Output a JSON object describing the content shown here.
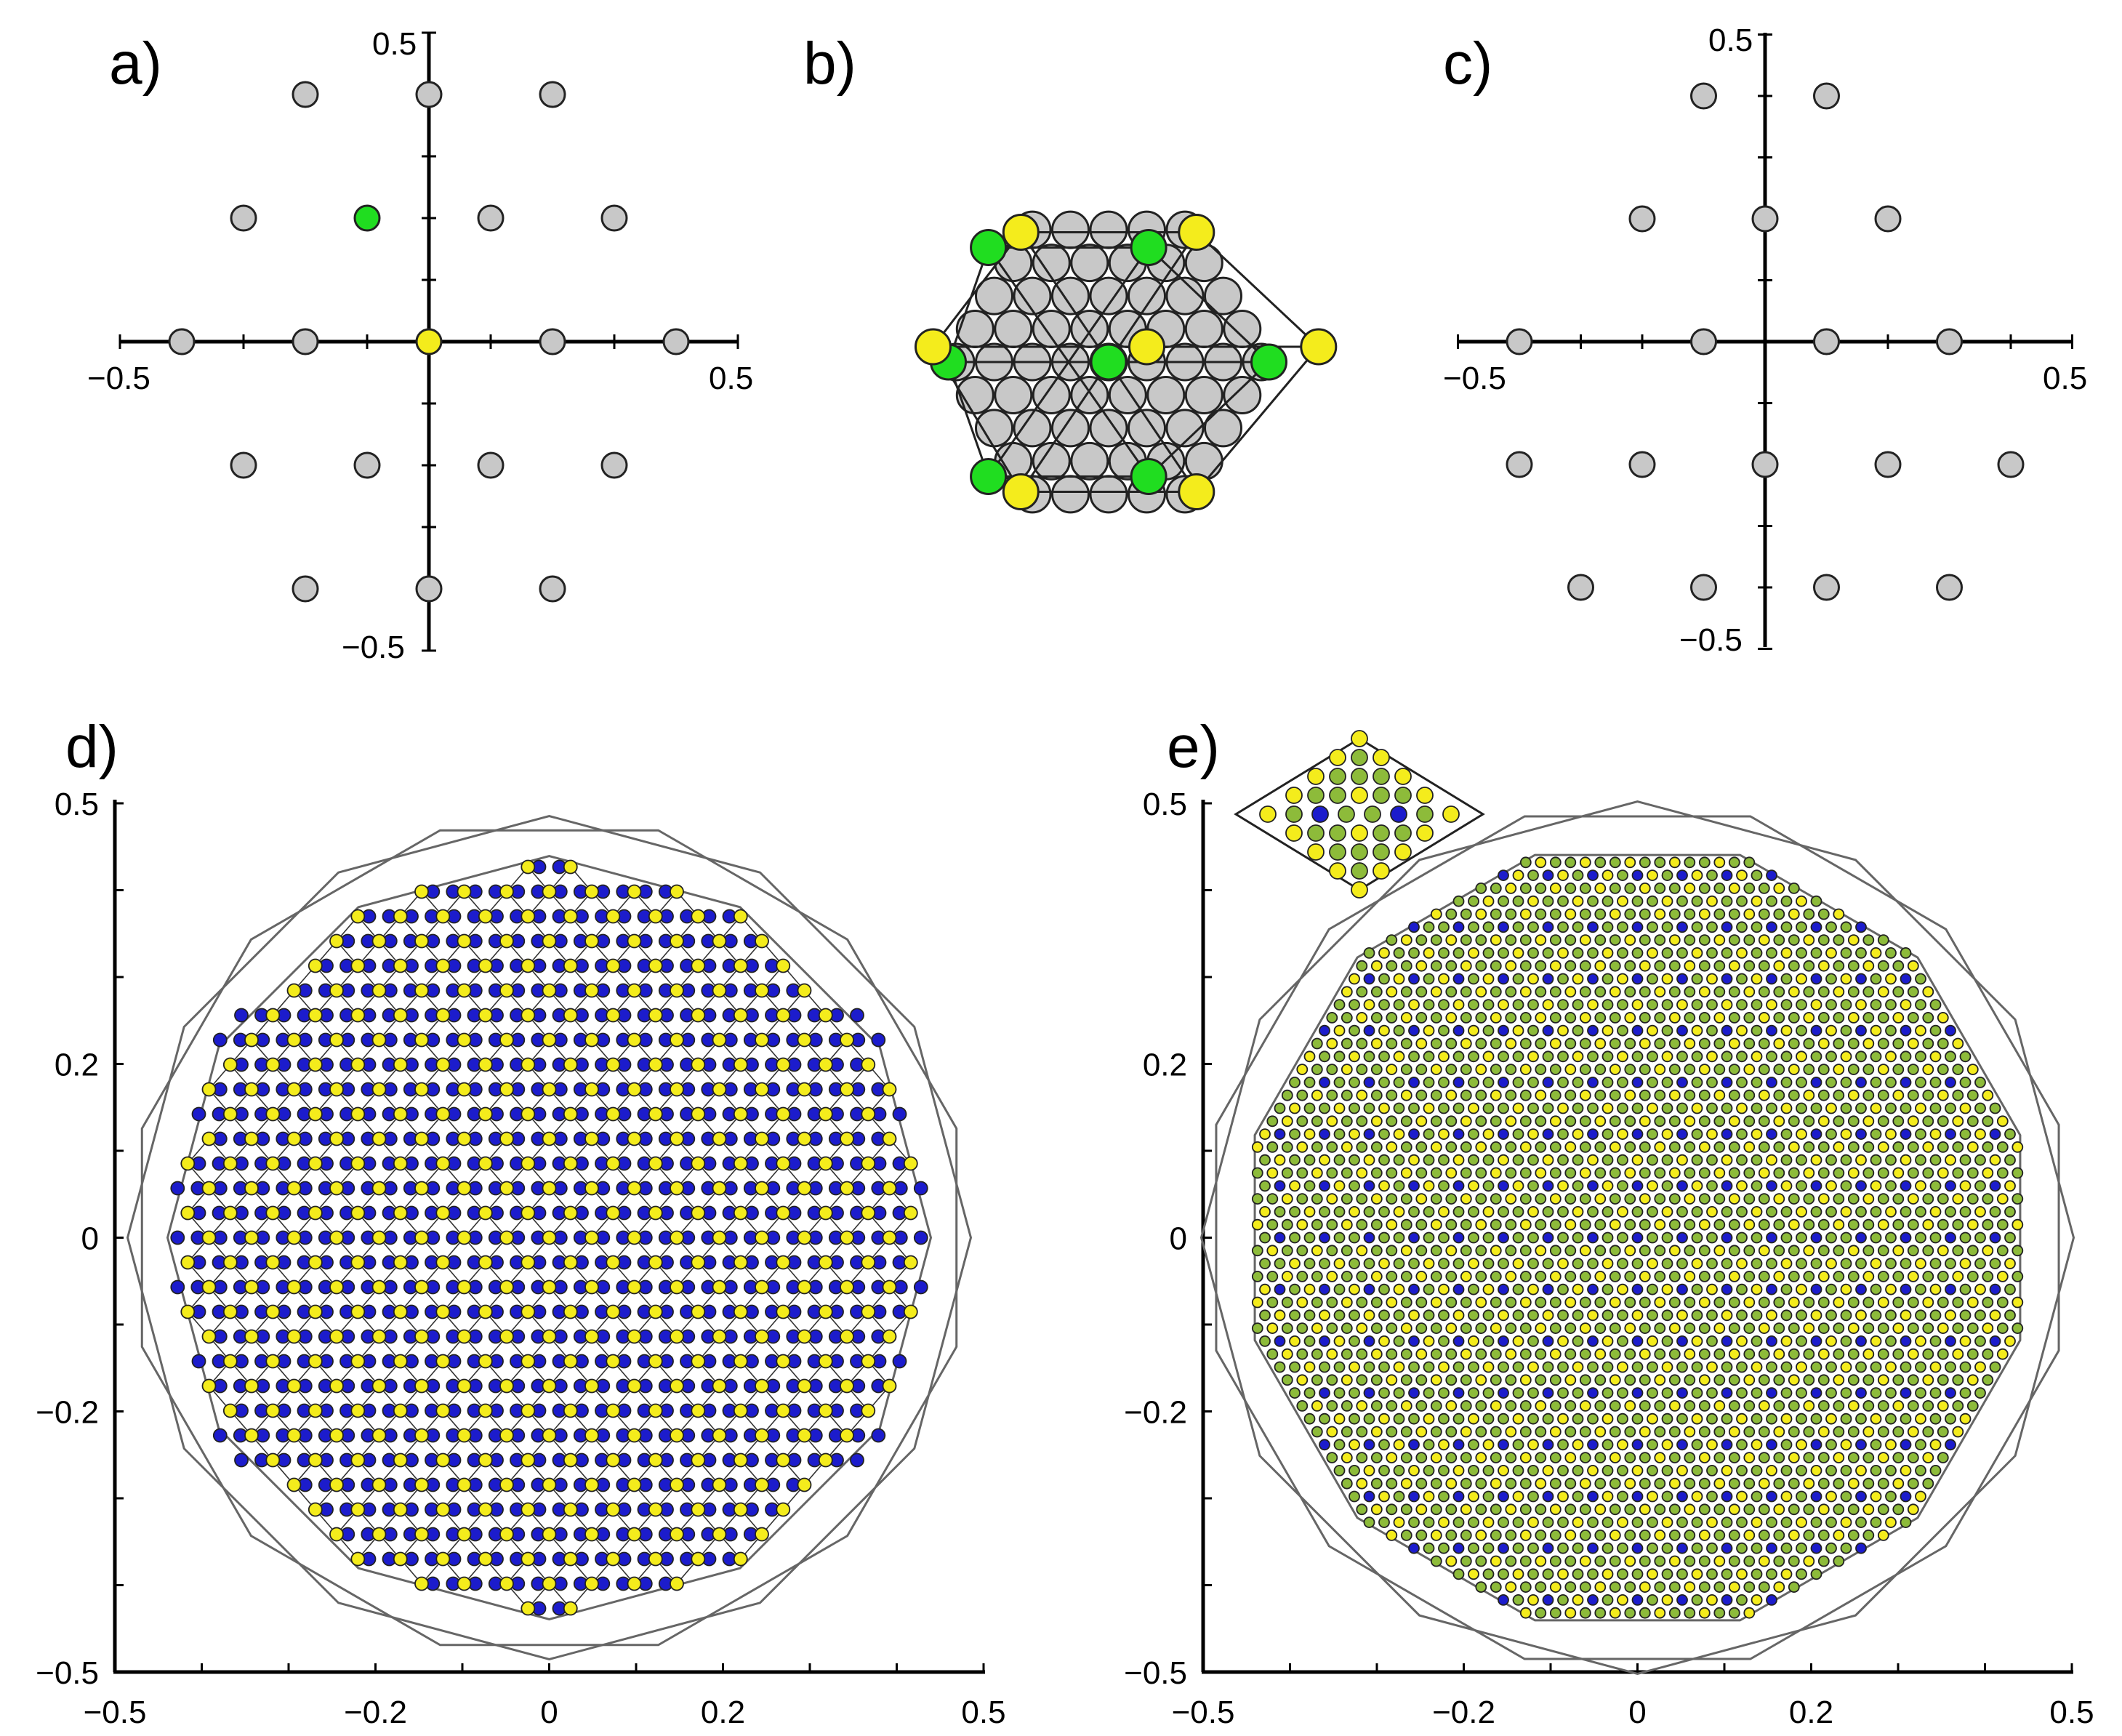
{
  "colors": {
    "grey": "#c8c8c8",
    "yellow": "#f4ec1c",
    "green": "#20dd20",
    "blue": "#1c1ccc",
    "olive": "#8dbb3a",
    "outline": "#666666",
    "axis": "#000000"
  },
  "panels": [
    {
      "id": "a",
      "label": "a)",
      "tick_labels": {
        "x_min": "−0.5",
        "x_max": "0.5",
        "y_max": "0.5",
        "y_min": "−0.5"
      },
      "points": [
        {
          "x": -0.2,
          "y": 0.4,
          "type": "grey"
        },
        {
          "x": 0.0,
          "y": 0.4,
          "type": "grey"
        },
        {
          "x": 0.2,
          "y": 0.4,
          "type": "grey"
        },
        {
          "x": -0.3,
          "y": 0.2,
          "type": "grey"
        },
        {
          "x": -0.1,
          "y": 0.2,
          "type": "green"
        },
        {
          "x": 0.1,
          "y": 0.2,
          "type": "grey"
        },
        {
          "x": 0.3,
          "y": 0.2,
          "type": "grey"
        },
        {
          "x": -0.4,
          "y": 0.0,
          "type": "grey"
        },
        {
          "x": -0.2,
          "y": 0.0,
          "type": "grey"
        },
        {
          "x": 0.0,
          "y": 0.0,
          "type": "yellow"
        },
        {
          "x": 0.2,
          "y": 0.0,
          "type": "grey"
        },
        {
          "x": 0.4,
          "y": 0.0,
          "type": "grey"
        },
        {
          "x": -0.3,
          "y": -0.2,
          "type": "grey"
        },
        {
          "x": -0.1,
          "y": -0.2,
          "type": "grey"
        },
        {
          "x": 0.1,
          "y": -0.2,
          "type": "grey"
        },
        {
          "x": 0.3,
          "y": -0.2,
          "type": "grey"
        },
        {
          "x": -0.2,
          "y": -0.4,
          "type": "grey"
        },
        {
          "x": 0.0,
          "y": -0.4,
          "type": "grey"
        },
        {
          "x": 0.2,
          "y": -0.4,
          "type": "grey"
        }
      ]
    },
    {
      "id": "b",
      "label": "b)",
      "disk_radius": 4.2,
      "green_points": [
        [
          -3.15,
          3.0
        ],
        [
          1.05,
          3.0
        ],
        [
          -4.2,
          0.0
        ],
        [
          0.0,
          0.0
        ],
        [
          4.2,
          0.0
        ],
        [
          -3.15,
          -3.0
        ],
        [
          1.05,
          -3.0
        ]
      ],
      "yellow_points": [
        [
          -2.3,
          3.4
        ],
        [
          2.3,
          3.4
        ],
        [
          -4.6,
          0.4
        ],
        [
          1.0,
          0.4
        ],
        [
          5.5,
          0.4
        ],
        [
          -2.3,
          -3.4
        ],
        [
          2.3,
          -3.4
        ]
      ]
    },
    {
      "id": "c",
      "label": "c)",
      "tick_labels": {
        "x_min": "−0.5",
        "x_max": "0.5",
        "y_max": "0.5",
        "y_min": "−0.5"
      },
      "points": [
        {
          "x": -0.1,
          "y": 0.4
        },
        {
          "x": 0.1,
          "y": 0.4
        },
        {
          "x": -0.2,
          "y": 0.2
        },
        {
          "x": 0.0,
          "y": 0.2
        },
        {
          "x": 0.2,
          "y": 0.2
        },
        {
          "x": -0.4,
          "y": 0.0
        },
        {
          "x": -0.1,
          "y": 0.0
        },
        {
          "x": 0.1,
          "y": 0.0
        },
        {
          "x": 0.3,
          "y": 0.0
        },
        {
          "x": -0.4,
          "y": -0.2
        },
        {
          "x": -0.2,
          "y": -0.2
        },
        {
          "x": 0.0,
          "y": -0.2
        },
        {
          "x": 0.2,
          "y": -0.2
        },
        {
          "x": 0.4,
          "y": -0.2
        },
        {
          "x": -0.3,
          "y": -0.4
        },
        {
          "x": -0.1,
          "y": -0.4
        },
        {
          "x": 0.1,
          "y": -0.4
        },
        {
          "x": 0.3,
          "y": -0.4
        }
      ]
    },
    {
      "id": "d",
      "label": "d)",
      "x_ticks": [
        "−0.5",
        "−0.2",
        "0",
        "0.2",
        "0.5"
      ],
      "y_ticks": [
        "0.5",
        "0.2",
        "0",
        "−0.2",
        "−0.5"
      ],
      "range": [
        -0.5,
        0.5
      ]
    },
    {
      "id": "e",
      "label": "e)",
      "x_ticks": [
        "−0.5",
        "−0.2",
        "0",
        "0.2",
        "0.5"
      ],
      "y_ticks": [
        "0.5",
        "0.2",
        "0",
        "−0.2",
        "−0.5"
      ],
      "range": [
        -0.5,
        0.5
      ],
      "inset_rows": [
        [
          "yellow"
        ],
        [
          "yellow",
          "olive",
          "yellow"
        ],
        [
          "yellow",
          "olive",
          "olive",
          "olive",
          "yellow"
        ],
        [
          "yellow",
          "olive",
          "olive",
          "yellow",
          "olive",
          "olive",
          "yellow"
        ],
        [
          "yellow",
          "olive",
          "blue",
          "olive",
          "olive",
          "blue",
          "olive",
          "yellow"
        ],
        [
          "yellow",
          "olive",
          "olive",
          "yellow",
          "olive",
          "olive",
          "yellow"
        ],
        [
          "yellow",
          "olive",
          "olive",
          "olive",
          "yellow"
        ],
        [
          "yellow",
          "olive",
          "yellow"
        ],
        [
          "yellow"
        ]
      ]
    }
  ]
}
